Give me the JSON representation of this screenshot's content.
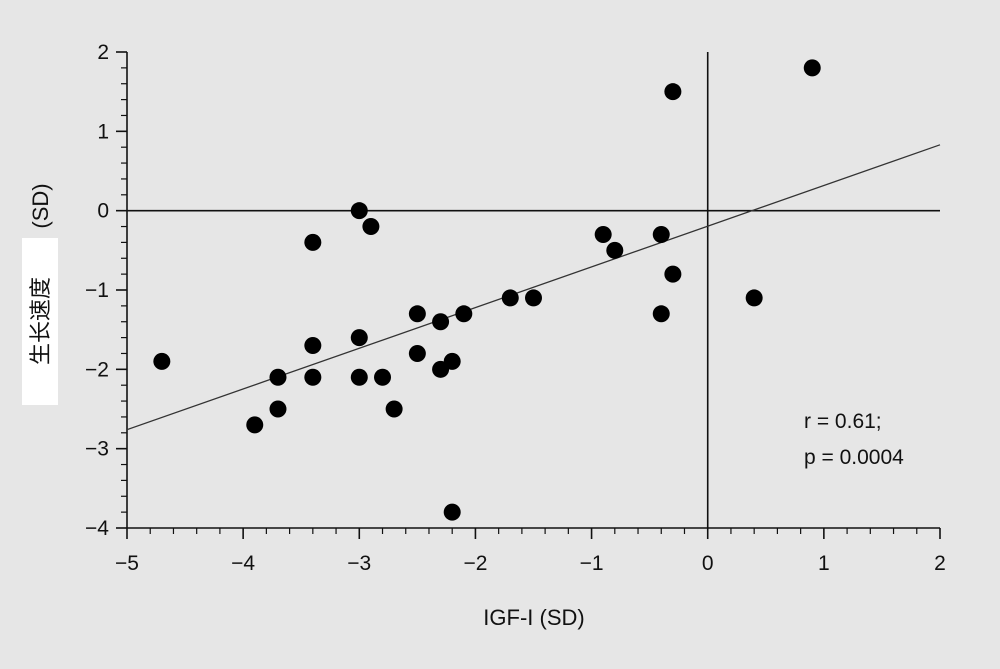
{
  "chart_data": {
    "type": "scatter",
    "xlabel": "IGF-I (SD)",
    "ylabel_cn": "生长速度",
    "ylabel_unit": "(SD)",
    "xlim": [
      -5,
      2
    ],
    "ylim": [
      -4,
      2
    ],
    "xticks": [
      -5,
      -4,
      -3,
      -2,
      -1,
      0,
      1,
      2
    ],
    "yticks": [
      -4,
      -3,
      -2,
      -1,
      0,
      1,
      2
    ],
    "xtick_labels": [
      "−5",
      "−4",
      "−3",
      "−2",
      "−1",
      "0",
      "1",
      "2"
    ],
    "ytick_labels": [
      "−4",
      "−3",
      "−2",
      "−1",
      "0",
      "1",
      "2"
    ],
    "reference_lines": {
      "x": 0,
      "y": 0
    },
    "regression": {
      "x": [
        -5,
        2
      ],
      "y": [
        -2.76,
        0.83
      ]
    },
    "annotation": [
      "r = 0.61;",
      "p = 0.0004"
    ],
    "points": [
      {
        "x": -4.7,
        "y": -1.9
      },
      {
        "x": -3.9,
        "y": -2.7
      },
      {
        "x": -3.7,
        "y": -2.1
      },
      {
        "x": -3.7,
        "y": -2.5
      },
      {
        "x": -3.4,
        "y": -0.4
      },
      {
        "x": -3.4,
        "y": -1.7
      },
      {
        "x": -3.4,
        "y": -2.1
      },
      {
        "x": -3.0,
        "y": 0.0
      },
      {
        "x": -3.0,
        "y": -1.6
      },
      {
        "x": -3.0,
        "y": -2.1
      },
      {
        "x": -2.9,
        "y": -0.2
      },
      {
        "x": -2.8,
        "y": -2.1
      },
      {
        "x": -2.7,
        "y": -2.5
      },
      {
        "x": -2.5,
        "y": -1.3
      },
      {
        "x": -2.5,
        "y": -1.8
      },
      {
        "x": -2.3,
        "y": -1.4
      },
      {
        "x": -2.3,
        "y": -2.0
      },
      {
        "x": -2.2,
        "y": -1.9
      },
      {
        "x": -2.2,
        "y": -3.8
      },
      {
        "x": -2.1,
        "y": -1.3
      },
      {
        "x": -1.7,
        "y": -1.1
      },
      {
        "x": -1.5,
        "y": -1.1
      },
      {
        "x": -0.9,
        "y": -0.3
      },
      {
        "x": -0.8,
        "y": -0.5
      },
      {
        "x": -0.4,
        "y": -0.3
      },
      {
        "x": -0.4,
        "y": -1.3
      },
      {
        "x": -0.3,
        "y": 1.5
      },
      {
        "x": -0.3,
        "y": -0.8
      },
      {
        "x": 0.4,
        "y": -1.1
      },
      {
        "x": 0.9,
        "y": 1.8
      }
    ]
  }
}
